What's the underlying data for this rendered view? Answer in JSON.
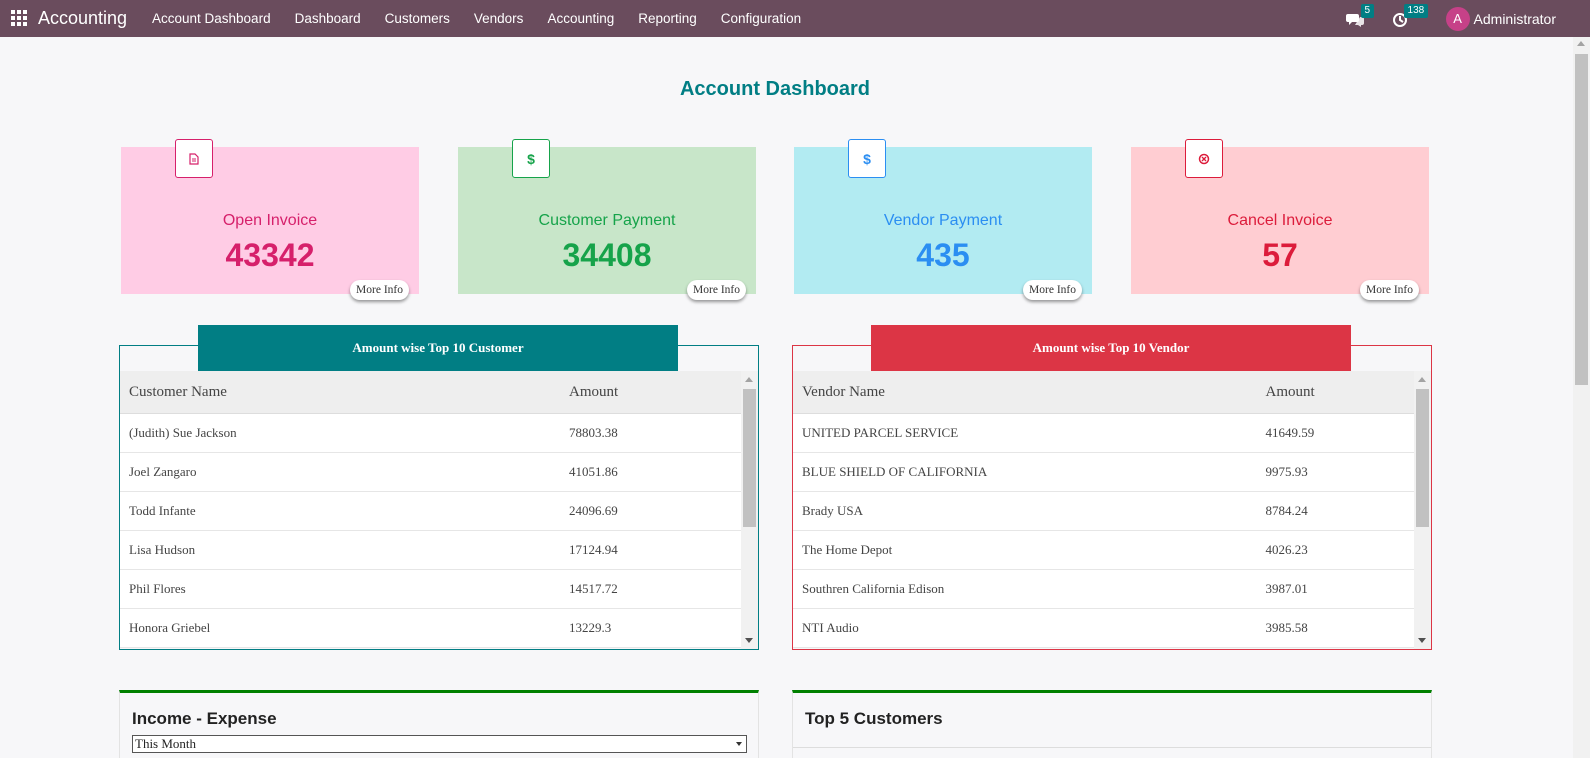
{
  "navbar": {
    "brand": "Accounting",
    "menu": [
      "Account Dashboard",
      "Dashboard",
      "Customers",
      "Vendors",
      "Accounting",
      "Reporting",
      "Configuration"
    ],
    "messages_count": "5",
    "activities_count": "138",
    "avatar_letter": "A",
    "user_name": "Administrator"
  },
  "page_title": "Account Dashboard",
  "cards": [
    {
      "title": "Open Invoice",
      "value": "43342",
      "more": "More Info",
      "icon": "document-icon",
      "color": "#d6206b",
      "bg": "#ffcce5"
    },
    {
      "title": "Customer Payment",
      "value": "34408",
      "more": "More Info",
      "icon": "dollar-icon",
      "color": "#16a34a",
      "bg": "#c8e6c9"
    },
    {
      "title": "Vendor Payment",
      "value": "435",
      "more": "More Info",
      "icon": "dollar-icon",
      "color": "#2b8ef2",
      "bg": "#b2ebf2"
    },
    {
      "title": "Cancel Invoice",
      "value": "57",
      "more": "More Info",
      "icon": "cancel-circle-icon",
      "color": "#dc1c3b",
      "bg": "#ffcdd2"
    }
  ],
  "customers_table": {
    "banner": "Amount wise Top 10 Customer",
    "headers": [
      "Customer Name",
      "Amount"
    ],
    "rows": [
      [
        "(Judith) Sue Jackson",
        "78803.38"
      ],
      [
        "Joel Zangaro",
        "41051.86"
      ],
      [
        "Todd Infante",
        "24096.69"
      ],
      [
        "Lisa Hudson",
        "17124.94"
      ],
      [
        "Phil Flores",
        "14517.72"
      ],
      [
        "Honora Griebel",
        "13229.3"
      ]
    ]
  },
  "vendors_table": {
    "banner": "Amount wise Top 10 Vendor",
    "headers": [
      "Vendor Name",
      "Amount"
    ],
    "rows": [
      [
        "UNITED PARCEL SERVICE",
        "41649.59"
      ],
      [
        "BLUE SHIELD OF CALIFORNIA",
        "9975.93"
      ],
      [
        "Brady USA",
        "8784.24"
      ],
      [
        "The Home Depot",
        "4026.23"
      ],
      [
        "Southren California Edison",
        "3987.01"
      ],
      [
        "NTI Audio",
        "3985.58"
      ]
    ]
  },
  "income_expense": {
    "title": "Income - Expense",
    "period": "This Month"
  },
  "top_customers": {
    "title": "Top 5 Customers"
  }
}
